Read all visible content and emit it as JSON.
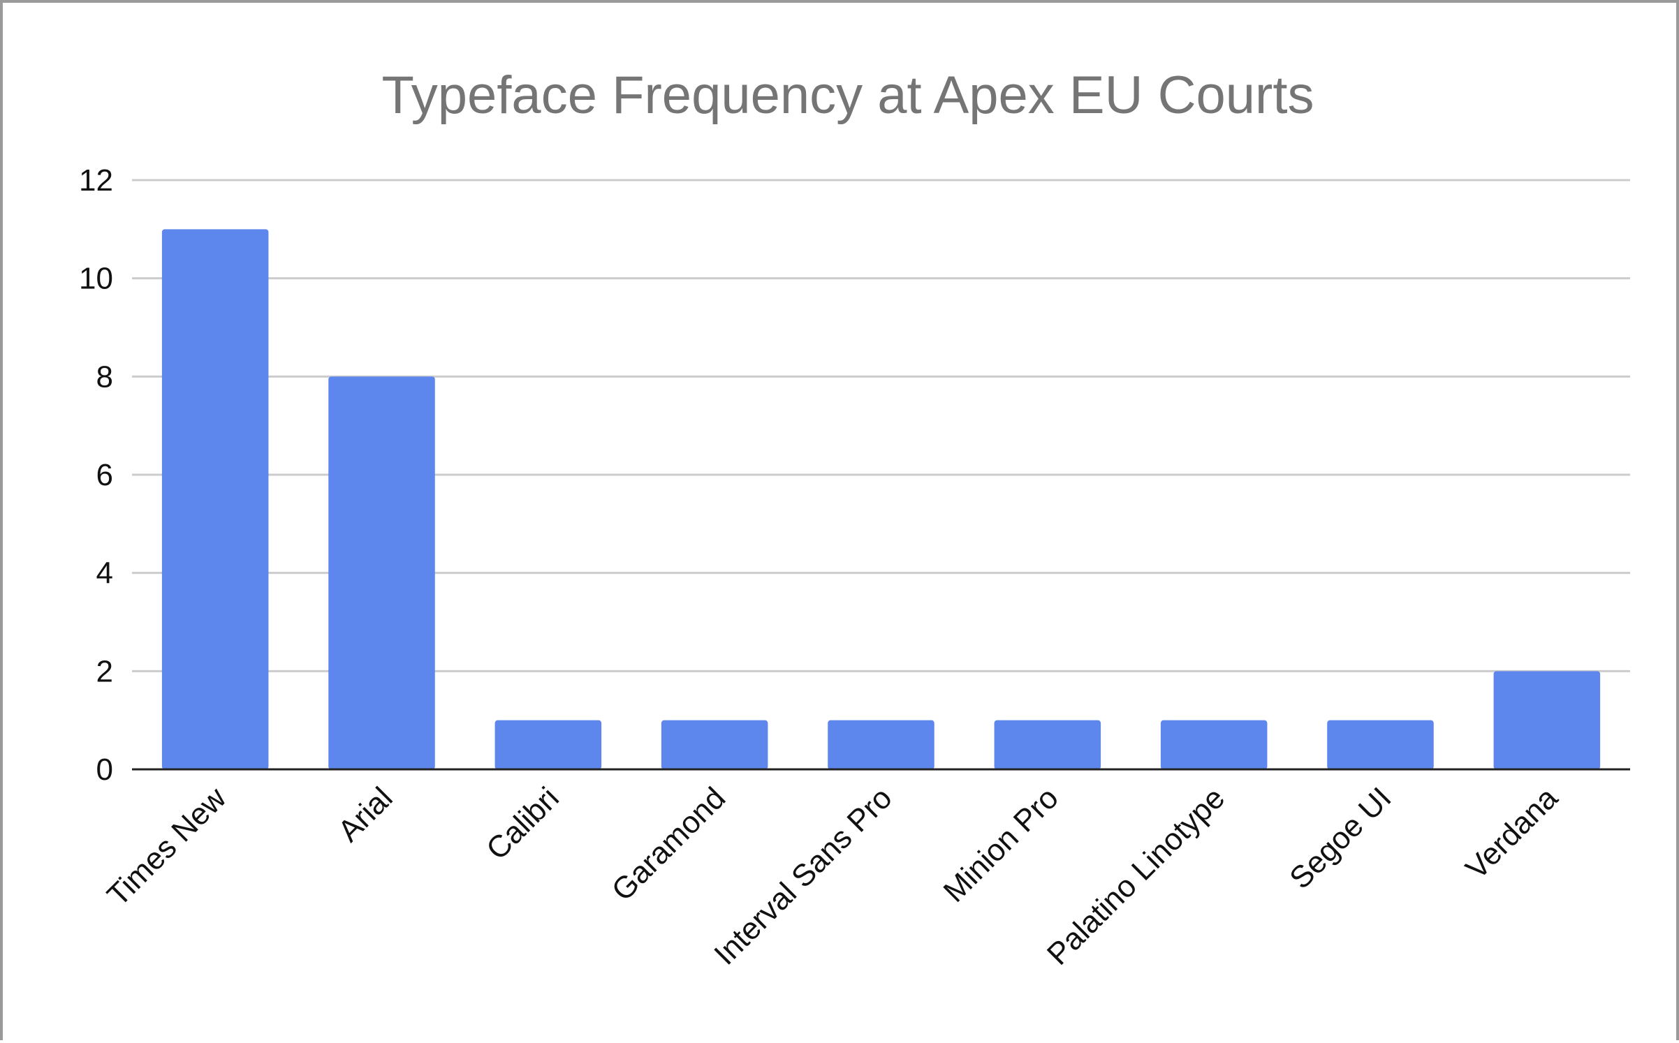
{
  "chart_data": {
    "type": "bar",
    "title": "Typeface Frequency at Apex EU Courts",
    "xlabel": "",
    "ylabel": "",
    "categories": [
      "Times New",
      "Arial",
      "Calibri",
      "Garamond",
      "Interval Sans Pro",
      "Minion Pro",
      "Palatino Linotype",
      "Segoe UI",
      "Verdana"
    ],
    "values": [
      11,
      8,
      1,
      1,
      1,
      1,
      1,
      1,
      2
    ],
    "ylim": [
      0,
      12
    ],
    "yticks": [
      "0",
      "2",
      "4",
      "6",
      "8",
      "10",
      "12"
    ],
    "grid": true,
    "legend": "none",
    "bar_color": "#5e87ee",
    "grid_color": "#cccccc",
    "axis_color": "#222222",
    "title_color": "#757575"
  }
}
